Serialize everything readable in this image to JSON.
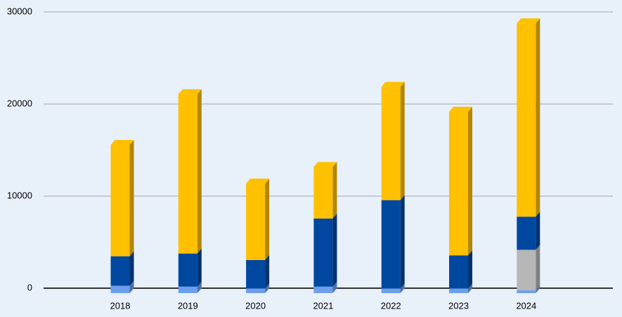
{
  "chart_data": {
    "type": "bar3d_stacked",
    "categories": [
      "2018",
      "2019",
      "2020",
      "2021",
      "2022",
      "2023",
      "2024"
    ],
    "series": [
      {
        "color": "#6d9eeb",
        "values": [
          800,
          700,
          500,
          700,
          500,
          500,
          300
        ]
      },
      {
        "color": "#b7b7b7",
        "values": [
          null,
          null,
          null,
          null,
          null,
          null,
          4400
        ]
      },
      {
        "color": "#0047a0",
        "values": [
          3200,
          3600,
          3100,
          7400,
          9600,
          3600,
          3600
        ]
      },
      {
        "color": "#ffc000",
        "values": [
          12100,
          17300,
          8300,
          5600,
          12300,
          15600,
          21000
        ]
      }
    ],
    "ylim": [
      0,
      30000
    ],
    "yticks": [
      0,
      10000,
      20000,
      30000
    ],
    "grid": true
  }
}
